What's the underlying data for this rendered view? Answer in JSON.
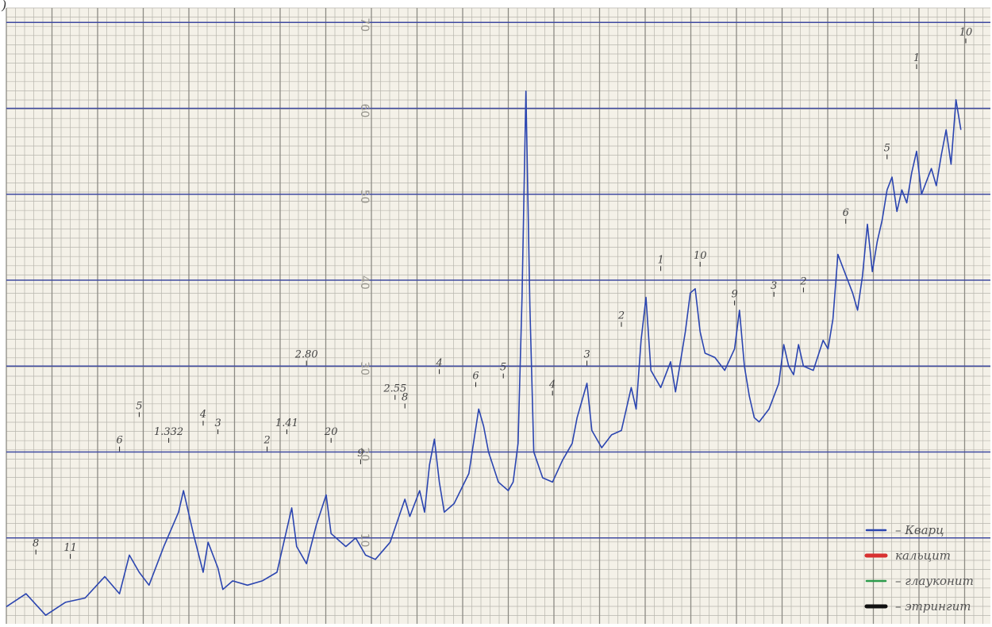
{
  "figure": {
    "corner_mark": ")",
    "paper_color": "#f4f1e8",
    "grid_minor_color": "#b7b5ad",
    "grid_major_color": "#3f4aa0"
  },
  "chart_data": {
    "type": "line",
    "title": "",
    "xlabel": "",
    "ylabel": "",
    "ylim": [
      0,
      80
    ],
    "y_tick_labels": [
      "10",
      "20",
      "30",
      "40",
      "50",
      "60",
      "70"
    ],
    "grid": true,
    "legend_placement": "bottom-right",
    "series": [
      {
        "color": "#2b45b0",
        "points": [
          [
            0.0,
            2.0
          ],
          [
            0.02,
            3.5
          ],
          [
            0.04,
            1.0
          ],
          [
            0.06,
            2.5
          ],
          [
            0.08,
            3.0
          ],
          [
            0.1,
            5.5
          ],
          [
            0.115,
            3.5
          ],
          [
            0.125,
            8.0
          ],
          [
            0.135,
            6.0
          ],
          [
            0.145,
            4.5
          ],
          [
            0.16,
            9.0
          ],
          [
            0.175,
            13.0
          ],
          [
            0.18,
            15.5
          ],
          [
            0.19,
            10.5
          ],
          [
            0.2,
            6.0
          ],
          [
            0.205,
            9.5
          ],
          [
            0.215,
            6.5
          ],
          [
            0.22,
            4.0
          ],
          [
            0.23,
            5.0
          ],
          [
            0.245,
            4.5
          ],
          [
            0.26,
            5.0
          ],
          [
            0.275,
            6.0
          ],
          [
            0.285,
            11.0
          ],
          [
            0.29,
            13.5
          ],
          [
            0.295,
            9.0
          ],
          [
            0.305,
            7.0
          ],
          [
            0.315,
            11.5
          ],
          [
            0.325,
            15.0
          ],
          [
            0.33,
            10.5
          ],
          [
            0.345,
            9.0
          ],
          [
            0.355,
            10.0
          ],
          [
            0.365,
            8.0
          ],
          [
            0.375,
            7.5
          ],
          [
            0.39,
            9.5
          ],
          [
            0.405,
            14.5
          ],
          [
            0.41,
            12.5
          ],
          [
            0.42,
            15.5
          ],
          [
            0.425,
            13.0
          ],
          [
            0.43,
            18.5
          ],
          [
            0.435,
            21.5
          ],
          [
            0.44,
            16.5
          ],
          [
            0.445,
            13.0
          ],
          [
            0.455,
            14.0
          ],
          [
            0.47,
            17.5
          ],
          [
            0.48,
            25.0
          ],
          [
            0.485,
            23.0
          ],
          [
            0.49,
            20.0
          ],
          [
            0.5,
            16.5
          ],
          [
            0.505,
            16.0
          ],
          [
            0.51,
            15.5
          ],
          [
            0.515,
            16.5
          ],
          [
            0.52,
            21.0
          ],
          [
            0.524,
            38.0
          ],
          [
            0.528,
            62.0
          ],
          [
            0.532,
            37.0
          ],
          [
            0.536,
            20.0
          ],
          [
            0.545,
            17.0
          ],
          [
            0.555,
            16.5
          ],
          [
            0.565,
            19.0
          ],
          [
            0.575,
            21.0
          ],
          [
            0.58,
            24.0
          ],
          [
            0.585,
            26.0
          ],
          [
            0.59,
            28.0
          ],
          [
            0.595,
            22.5
          ],
          [
            0.605,
            20.5
          ],
          [
            0.615,
            22.0
          ],
          [
            0.625,
            22.5
          ],
          [
            0.635,
            27.5
          ],
          [
            0.64,
            25.0
          ],
          [
            0.645,
            33.0
          ],
          [
            0.65,
            38.0
          ],
          [
            0.655,
            29.5
          ],
          [
            0.665,
            27.5
          ],
          [
            0.675,
            30.5
          ],
          [
            0.68,
            27.0
          ],
          [
            0.69,
            34.0
          ],
          [
            0.695,
            38.5
          ],
          [
            0.7,
            39.0
          ],
          [
            0.705,
            34.0
          ],
          [
            0.71,
            31.5
          ],
          [
            0.72,
            31.0
          ],
          [
            0.73,
            29.5
          ],
          [
            0.74,
            32.0
          ],
          [
            0.745,
            36.5
          ],
          [
            0.75,
            30.0
          ],
          [
            0.755,
            26.5
          ],
          [
            0.76,
            24.0
          ],
          [
            0.765,
            23.5
          ],
          [
            0.775,
            25.0
          ],
          [
            0.785,
            28.0
          ],
          [
            0.79,
            32.5
          ],
          [
            0.795,
            30.0
          ],
          [
            0.8,
            29.0
          ],
          [
            0.805,
            32.5
          ],
          [
            0.81,
            30.0
          ],
          [
            0.82,
            29.5
          ],
          [
            0.83,
            33.0
          ],
          [
            0.835,
            32.0
          ],
          [
            0.84,
            35.5
          ],
          [
            0.845,
            43.0
          ],
          [
            0.85,
            41.5
          ],
          [
            0.855,
            40.0
          ],
          [
            0.86,
            38.5
          ],
          [
            0.865,
            36.5
          ],
          [
            0.87,
            40.5
          ],
          [
            0.875,
            46.5
          ],
          [
            0.88,
            41.0
          ],
          [
            0.885,
            44.5
          ],
          [
            0.89,
            47.0
          ],
          [
            0.895,
            50.5
          ],
          [
            0.9,
            52.0
          ],
          [
            0.905,
            48.0
          ],
          [
            0.91,
            50.5
          ],
          [
            0.915,
            49.0
          ],
          [
            0.92,
            52.5
          ],
          [
            0.925,
            55.0
          ],
          [
            0.93,
            50.0
          ],
          [
            0.935,
            51.5
          ],
          [
            0.94,
            53.0
          ],
          [
            0.945,
            51.0
          ],
          [
            0.95,
            54.5
          ],
          [
            0.955,
            57.5
          ],
          [
            0.96,
            53.5
          ],
          [
            0.965,
            61.0
          ],
          [
            0.97,
            57.5
          ]
        ]
      }
    ],
    "peak_labels": [
      {
        "x": 0.115,
        "y": 21.0,
        "text": "6"
      },
      {
        "x": 0.135,
        "y": 25.0,
        "text": "5"
      },
      {
        "x": 0.165,
        "y": 22.0,
        "text": "1.332"
      },
      {
        "x": 0.2,
        "y": 24.0,
        "text": "4"
      },
      {
        "x": 0.215,
        "y": 23.0,
        "text": "3"
      },
      {
        "x": 0.265,
        "y": 21.0,
        "text": "2"
      },
      {
        "x": 0.285,
        "y": 23.0,
        "text": "1.41"
      },
      {
        "x": 0.305,
        "y": 31.0,
        "text": "2.80"
      },
      {
        "x": 0.33,
        "y": 22.0,
        "text": "20"
      },
      {
        "x": 0.36,
        "y": 19.5,
        "text": "9"
      },
      {
        "x": 0.395,
        "y": 27.0,
        "text": "2.55"
      },
      {
        "x": 0.405,
        "y": 26.0,
        "text": "8"
      },
      {
        "x": 0.44,
        "y": 30.0,
        "text": "4"
      },
      {
        "x": 0.477,
        "y": 28.5,
        "text": "6"
      },
      {
        "x": 0.505,
        "y": 29.5,
        "text": "5"
      },
      {
        "x": 0.555,
        "y": 27.5,
        "text": "4"
      },
      {
        "x": 0.59,
        "y": 31.0,
        "text": "3"
      },
      {
        "x": 0.625,
        "y": 35.5,
        "text": "2"
      },
      {
        "x": 0.665,
        "y": 42.0,
        "text": "1"
      },
      {
        "x": 0.705,
        "y": 42.5,
        "text": "10"
      },
      {
        "x": 0.74,
        "y": 38.0,
        "text": "9"
      },
      {
        "x": 0.78,
        "y": 39.0,
        "text": "3"
      },
      {
        "x": 0.81,
        "y": 39.5,
        "text": "2"
      },
      {
        "x": 0.853,
        "y": 47.5,
        "text": "6"
      },
      {
        "x": 0.895,
        "y": 55.0,
        "text": "5"
      },
      {
        "x": 0.925,
        "y": 65.5,
        "text": "1"
      },
      {
        "x": 0.975,
        "y": 68.5,
        "text": "10"
      },
      {
        "x": 0.03,
        "y": 9.0,
        "text": "8"
      },
      {
        "x": 0.065,
        "y": 8.5,
        "text": "11"
      }
    ],
    "legend": [
      {
        "color": "#2b45b0",
        "text": "– Кварц"
      },
      {
        "color": "#d83030",
        "text": "кальцит"
      },
      {
        "color": "#2a9a4a",
        "text": "– глауконит"
      },
      {
        "color": "#111111",
        "text": "– этрингит"
      }
    ]
  }
}
